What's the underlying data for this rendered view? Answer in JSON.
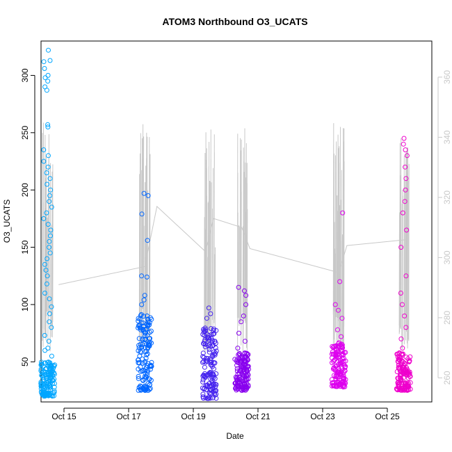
{
  "chart_data": {
    "type": "scatter",
    "title": "ATOM3 Northbound O3_UCATS",
    "xlabel": "Date",
    "ylabel": "O3_UCATS",
    "x_ticks": [
      "Oct 15",
      "Oct 17",
      "Oct 19",
      "Oct 21",
      "Oct 23",
      "Oct 25"
    ],
    "y_ticks": [
      50,
      100,
      150,
      200,
      250,
      300
    ],
    "y_right_ticks": [
      260,
      280,
      300,
      320,
      340,
      360
    ],
    "ylim": [
      15,
      330
    ],
    "y_right_lim": [
      252,
      372
    ],
    "grid": false,
    "flights": [
      {
        "date": "2017-10-14",
        "color": "#00a6ff",
        "o3_low": [
          20,
          50
        ],
        "o3_outliers": [
          55,
          60,
          62,
          68,
          73,
          80,
          85,
          92,
          98,
          105,
          110,
          118,
          125,
          130,
          135,
          140,
          145,
          150,
          155,
          160,
          165,
          170,
          175,
          180,
          185,
          190,
          195,
          200,
          205,
          210,
          215,
          220,
          225,
          230,
          235,
          255,
          257,
          287,
          290,
          295,
          298,
          300,
          306,
          312,
          313,
          322
        ]
      },
      {
        "date": "2017-10-17",
        "color": "#0066ff",
        "o3_low": [
          25,
          92
        ],
        "o3_outliers": [
          100,
          104,
          108,
          124,
          125,
          156,
          179,
          195,
          197
        ]
      },
      {
        "date": "2017-10-19",
        "color": "#4422ee",
        "o3_low": [
          18,
          80
        ],
        "o3_outliers": [
          88,
          92,
          97
        ]
      },
      {
        "date": "2017-10-20",
        "color": "#8800ee",
        "o3_low": [
          25,
          58
        ],
        "o3_outliers": [
          62,
          68,
          75,
          85,
          90,
          100,
          108,
          112,
          115
        ]
      },
      {
        "date": "2017-10-23",
        "color": "#dd00ee",
        "o3_low": [
          28,
          68
        ],
        "o3_outliers": [
          72,
          78,
          88,
          95,
          100,
          120,
          180
        ]
      },
      {
        "date": "2017-10-25",
        "color": "#ee00cc",
        "o3_low": [
          25,
          58
        ],
        "o3_outliers": [
          62,
          70,
          80,
          90,
          100,
          110,
          125,
          150,
          165,
          180,
          190,
          200,
          210,
          220,
          230,
          235,
          240,
          245
        ]
      }
    ],
    "altitude_line": [
      {
        "date": "2017-10-14 20:00",
        "alt": 291
      },
      {
        "date": "2017-10-17 12:00",
        "alt": 297
      },
      {
        "date": "2017-10-17 21:00",
        "alt": 317
      },
      {
        "date": "2017-10-19 09:00",
        "alt": 302
      },
      {
        "date": "2017-10-19 15:00",
        "alt": 313
      },
      {
        "date": "2017-10-20 12:00",
        "alt": 310
      },
      {
        "date": "2017-10-20 18:00",
        "alt": 303
      },
      {
        "date": "2017-10-23 12:00",
        "alt": 295
      },
      {
        "date": "2017-10-23 18:00",
        "alt": 304
      },
      {
        "date": "2017-10-25 15:00",
        "alt": 306
      }
    ],
    "altitude_color": "#c8c8c8",
    "point_color_scheme": "blue-to-magenta by date"
  }
}
